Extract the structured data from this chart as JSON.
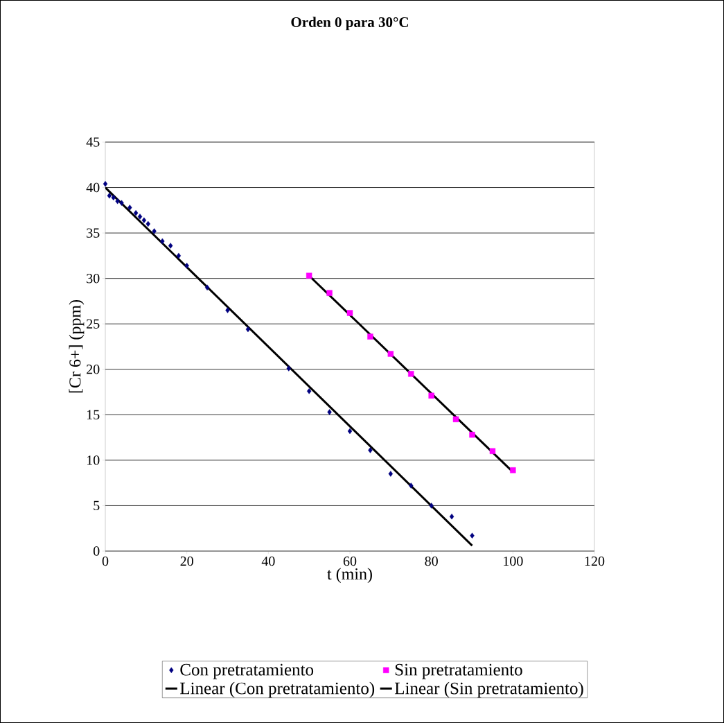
{
  "chart_data": {
    "type": "scatter",
    "title": "Orden 0 para 30°C",
    "xlabel": "t (min)",
    "ylabel": "[Cr 6+] (ppm)",
    "xlim": [
      0,
      120
    ],
    "xticks": [
      0,
      20,
      40,
      60,
      80,
      100,
      120
    ],
    "ylim": [
      0,
      45
    ],
    "yticks": [
      0,
      5,
      10,
      15,
      20,
      25,
      30,
      35,
      40,
      45
    ],
    "grid": "y",
    "legend": "bottom",
    "series": [
      {
        "name": "Con pretratamiento",
        "type": "scatter",
        "marker": "diamond",
        "color": "#000080",
        "x": [
          0,
          1,
          2,
          3,
          4,
          6,
          7.5,
          8.5,
          9.5,
          10.5,
          12,
          14,
          16,
          18,
          20,
          25,
          30,
          35,
          45,
          50,
          55,
          60,
          65,
          70,
          75,
          80,
          85,
          90
        ],
        "values": [
          40.4,
          39.1,
          38.9,
          38.5,
          38.3,
          37.8,
          37.2,
          36.8,
          36.4,
          36.0,
          35.2,
          34.1,
          33.6,
          32.5,
          31.4,
          29.0,
          26.5,
          24.4,
          20.1,
          17.6,
          15.3,
          13.2,
          11.1,
          8.5,
          7.2,
          5.0,
          3.8,
          1.7
        ]
      },
      {
        "name": "Sin pretratamiento",
        "type": "scatter",
        "marker": "square",
        "color": "#ff00ff",
        "x": [
          50,
          55,
          60,
          65,
          70,
          75,
          80,
          86,
          90,
          95,
          100
        ],
        "values": [
          30.3,
          28.4,
          26.2,
          23.6,
          21.7,
          19.5,
          17.1,
          14.5,
          12.8,
          11.0,
          8.9
        ]
      },
      {
        "name": "Linear (Con pretratamiento)",
        "type": "line",
        "marker": "none",
        "line_style": "solid",
        "color": "#000000",
        "x": [
          0,
          90
        ],
        "values": [
          40.0,
          0.6
        ]
      },
      {
        "name": "Linear (Sin pretratamiento)",
        "type": "line",
        "marker": "none",
        "line_style": "solid",
        "color": "#000000",
        "x": [
          50,
          100
        ],
        "values": [
          30.3,
          8.7
        ]
      }
    ]
  }
}
